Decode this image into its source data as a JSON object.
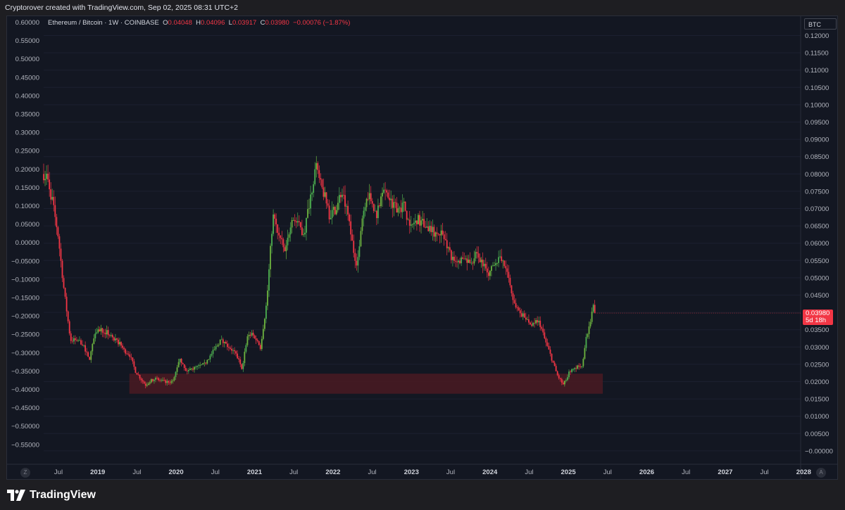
{
  "header": {
    "attribution": "Cryptorover created with TradingView.com, Sep 02, 2025 08:31 UTC+2"
  },
  "legend": {
    "symbol": "Ethereum / Bitcoin · 1W · COINBASE",
    "o_label": "O",
    "o_val": "0.04048",
    "h_label": "H",
    "h_val": "0.04096",
    "l_label": "L",
    "l_val": "0.03917",
    "c_label": "C",
    "c_val": "0.03980",
    "change": "−0.00076 (−1.87%)"
  },
  "right_axis": {
    "currency": "BTC",
    "last_price": "0.03980",
    "countdown": "5d 18h"
  },
  "corner_buttons": {
    "left": "Z",
    "right": "A"
  },
  "brand": {
    "name": "TradingView"
  },
  "colors": {
    "up": "#26a69a",
    "up_bright": "#4caf50",
    "down": "#f23645",
    "zone": "#4a1a22",
    "background": "#131722",
    "grid": "#1c2030"
  },
  "chart_data": {
    "type": "candlestick",
    "left_axis_labels": [
      "0.60000",
      "0.55000",
      "0.50000",
      "0.45000",
      "0.40000",
      "0.35000",
      "0.30000",
      "0.25000",
      "0.20000",
      "0.15000",
      "0.10000",
      "0.05000",
      "0.00000",
      "−0.05000",
      "−0.10000",
      "−0.15000",
      "−0.20000",
      "−0.25000",
      "−0.30000",
      "−0.35000",
      "−0.40000",
      "−0.45000",
      "−0.50000",
      "−0.55000"
    ],
    "right_axis_labels": [
      "0.12000",
      "0.11500",
      "0.11000",
      "0.10500",
      "0.10000",
      "0.09500",
      "0.09000",
      "0.08500",
      "0.08000",
      "0.07500",
      "0.07000",
      "0.06500",
      "0.06000",
      "0.05500",
      "0.05000",
      "0.04500",
      "0.04000",
      "0.03500",
      "0.03000",
      "0.02500",
      "0.02000",
      "0.01500",
      "0.01000",
      "0.00500",
      "−0.00000"
    ],
    "x_axis_labels": [
      {
        "label": "Jul",
        "bold": false
      },
      {
        "label": "2019",
        "bold": true
      },
      {
        "label": "Jul",
        "bold": false
      },
      {
        "label": "2020",
        "bold": true
      },
      {
        "label": "Jul",
        "bold": false
      },
      {
        "label": "2021",
        "bold": true
      },
      {
        "label": "Jul",
        "bold": false
      },
      {
        "label": "2022",
        "bold": true
      },
      {
        "label": "Jul",
        "bold": false
      },
      {
        "label": "2023",
        "bold": true
      },
      {
        "label": "Jul",
        "bold": false
      },
      {
        "label": "2024",
        "bold": true
      },
      {
        "label": "Jul",
        "bold": false
      },
      {
        "label": "2025",
        "bold": true
      },
      {
        "label": "Jul",
        "bold": false
      },
      {
        "label": "2026",
        "bold": true
      },
      {
        "label": "Jul",
        "bold": false
      },
      {
        "label": "2027",
        "bold": true
      },
      {
        "label": "Jul",
        "bold": false
      },
      {
        "label": "2028",
        "bold": true
      }
    ],
    "y_range_btc": [
      -0.0015,
      0.124
    ],
    "x_range": [
      "2018-04-23",
      "2028-06-01"
    ],
    "support_zone": {
      "from": "2019-06-15",
      "to": "2025-10-10",
      "low": 0.0165,
      "high": 0.0223
    },
    "path": [
      [
        "2018-04-23",
        0.08
      ],
      [
        "2018-05-10",
        0.079
      ],
      [
        "2018-06-01",
        0.073
      ],
      [
        "2018-07-01",
        0.063
      ],
      [
        "2018-08-01",
        0.046
      ],
      [
        "2018-09-01",
        0.032
      ],
      [
        "2018-10-01",
        0.032
      ],
      [
        "2018-11-01",
        0.031
      ],
      [
        "2018-12-01",
        0.026
      ],
      [
        "2019-01-01",
        0.035
      ],
      [
        "2019-02-01",
        0.035
      ],
      [
        "2019-03-01",
        0.034
      ],
      [
        "2019-04-01",
        0.032
      ],
      [
        "2019-05-01",
        0.031
      ],
      [
        "2019-05-20",
        0.029
      ],
      [
        "2019-06-15",
        0.028
      ],
      [
        "2019-07-15",
        0.023
      ],
      [
        "2019-09-01",
        0.019
      ],
      [
        "2019-10-15",
        0.021
      ],
      [
        "2019-12-01",
        0.02
      ],
      [
        "2020-01-15",
        0.02
      ],
      [
        "2020-02-15",
        0.027
      ],
      [
        "2020-03-15",
        0.023
      ],
      [
        "2020-05-01",
        0.024
      ],
      [
        "2020-06-15",
        0.025
      ],
      [
        "2020-08-01",
        0.029
      ],
      [
        "2020-09-01",
        0.032
      ],
      [
        "2020-10-15",
        0.03
      ],
      [
        "2020-11-15",
        0.028
      ],
      [
        "2020-12-15",
        0.024
      ],
      [
        "2021-01-15",
        0.034
      ],
      [
        "2021-02-15",
        0.033
      ],
      [
        "2021-03-15",
        0.03
      ],
      [
        "2021-04-15",
        0.043
      ],
      [
        "2021-05-15",
        0.068
      ],
      [
        "2021-06-15",
        0.062
      ],
      [
        "2021-07-15",
        0.057
      ],
      [
        "2021-08-15",
        0.068
      ],
      [
        "2021-09-15",
        0.065
      ],
      [
        "2021-10-15",
        0.063
      ],
      [
        "2021-11-15",
        0.074
      ],
      [
        "2021-12-10",
        0.082
      ],
      [
        "2022-01-01",
        0.077
      ],
      [
        "2022-01-20",
        0.074
      ],
      [
        "2022-02-15",
        0.068
      ],
      [
        "2022-03-15",
        0.07
      ],
      [
        "2022-04-15",
        0.075
      ],
      [
        "2022-05-15",
        0.068
      ],
      [
        "2022-06-15",
        0.057
      ],
      [
        "2022-07-01",
        0.054
      ],
      [
        "2022-07-20",
        0.066
      ],
      [
        "2022-08-15",
        0.074
      ],
      [
        "2022-09-10",
        0.072
      ],
      [
        "2022-10-01",
        0.068
      ],
      [
        "2022-11-01",
        0.076
      ],
      [
        "2022-12-01",
        0.073
      ],
      [
        "2023-01-15",
        0.07
      ],
      [
        "2023-02-15",
        0.071
      ],
      [
        "2023-03-15",
        0.064
      ],
      [
        "2023-04-15",
        0.067
      ],
      [
        "2023-05-15",
        0.066
      ],
      [
        "2023-06-15",
        0.064
      ],
      [
        "2023-07-15",
        0.063
      ],
      [
        "2023-08-15",
        0.063
      ],
      [
        "2023-09-15",
        0.059
      ],
      [
        "2023-10-15",
        0.054
      ],
      [
        "2023-11-15",
        0.055
      ],
      [
        "2023-12-15",
        0.055
      ],
      [
        "2024-01-15",
        0.055
      ],
      [
        "2024-02-01",
        0.057
      ],
      [
        "2024-03-01",
        0.055
      ],
      [
        "2024-04-01",
        0.05
      ],
      [
        "2024-05-01",
        0.055
      ],
      [
        "2024-06-01",
        0.055
      ],
      [
        "2024-07-01",
        0.052
      ],
      [
        "2024-08-01",
        0.043
      ],
      [
        "2024-09-01",
        0.04
      ],
      [
        "2024-10-01",
        0.038
      ],
      [
        "2024-11-01",
        0.036
      ],
      [
        "2024-12-01",
        0.038
      ],
      [
        "2025-01-01",
        0.032
      ],
      [
        "2025-02-01",
        0.027
      ],
      [
        "2025-03-01",
        0.022
      ],
      [
        "2025-04-01",
        0.019
      ],
      [
        "2025-05-01",
        0.023
      ],
      [
        "2025-06-01",
        0.024
      ],
      [
        "2025-07-01",
        0.025
      ],
      [
        "2025-07-20",
        0.032
      ],
      [
        "2025-08-10",
        0.037
      ],
      [
        "2025-08-25",
        0.042
      ],
      [
        "2025-09-01",
        0.0398
      ]
    ]
  }
}
